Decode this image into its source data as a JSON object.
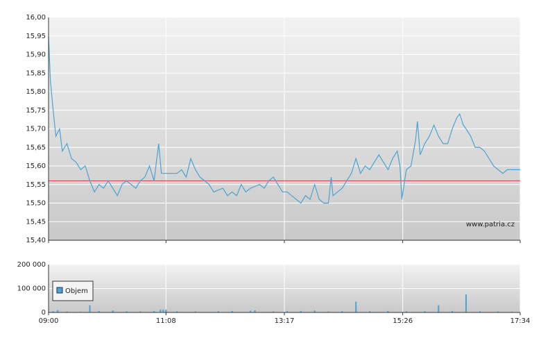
{
  "chart_data": [
    {
      "type": "line",
      "x": [
        "09:00",
        "09:02",
        "09:05",
        "09:08",
        "09:12",
        "09:15",
        "09:20",
        "09:25",
        "09:30",
        "09:35",
        "09:40",
        "09:45",
        "09:50",
        "09:55",
        "10:00",
        "10:05",
        "10:10",
        "10:15",
        "10:20",
        "10:25",
        "10:30",
        "10:35",
        "10:40",
        "10:45",
        "10:50",
        "10:55",
        "11:00",
        "11:03",
        "11:10",
        "11:20",
        "11:25",
        "11:30",
        "11:35",
        "11:40",
        "11:45",
        "11:50",
        "11:55",
        "12:00",
        "12:10",
        "12:15",
        "12:20",
        "12:25",
        "12:30",
        "12:35",
        "12:40",
        "12:50",
        "12:55",
        "13:00",
        "13:05",
        "13:10",
        "13:15",
        "13:20",
        "13:25",
        "13:30",
        "13:35",
        "13:40",
        "13:45",
        "13:50",
        "13:55",
        "14:00",
        "14:05",
        "14:08",
        "14:10",
        "14:15",
        "14:20",
        "14:25",
        "14:30",
        "14:35",
        "14:40",
        "14:45",
        "14:50",
        "14:55",
        "15:00",
        "15:05",
        "15:10",
        "15:15",
        "15:20",
        "15:23",
        "15:25",
        "15:28",
        "15:30",
        "15:35",
        "15:40",
        "15:42",
        "15:45",
        "15:50",
        "15:55",
        "16:00",
        "16:05",
        "16:10",
        "16:15",
        "16:20",
        "16:25",
        "16:28",
        "16:32",
        "16:35",
        "16:40",
        "16:45",
        "16:50",
        "16:55",
        "17:00",
        "17:05",
        "17:10",
        "17:15",
        "17:20",
        "17:34"
      ],
      "series": [
        {
          "color": "#4aa3d2",
          "values": [
            15.95,
            15.83,
            15.75,
            15.68,
            15.7,
            15.64,
            15.66,
            15.62,
            15.61,
            15.59,
            15.6,
            15.56,
            15.53,
            15.55,
            15.54,
            15.56,
            15.54,
            15.52,
            15.55,
            15.56,
            15.55,
            15.54,
            15.56,
            15.57,
            15.6,
            15.56,
            15.66,
            15.58,
            15.58,
            15.58,
            15.59,
            15.57,
            15.62,
            15.59,
            15.57,
            15.56,
            15.55,
            15.53,
            15.54,
            15.52,
            15.53,
            15.52,
            15.55,
            15.53,
            15.54,
            15.55,
            15.54,
            15.56,
            15.57,
            15.55,
            15.53,
            15.53,
            15.52,
            15.51,
            15.5,
            15.52,
            15.51,
            15.55,
            15.51,
            15.5,
            15.5,
            15.57,
            15.52,
            15.53,
            15.54,
            15.56,
            15.58,
            15.62,
            15.58,
            15.6,
            15.59,
            15.61,
            15.63,
            15.61,
            15.59,
            15.62,
            15.64,
            15.6,
            15.51,
            15.56,
            15.59,
            15.6,
            15.67,
            15.72,
            15.63,
            15.66,
            15.68,
            15.71,
            15.68,
            15.66,
            15.66,
            15.7,
            15.73,
            15.74,
            15.71,
            15.7,
            15.68,
            15.65,
            15.65,
            15.64,
            15.62,
            15.6,
            15.59,
            15.58,
            15.59,
            15.59
          ]
        }
      ],
      "reference_line": {
        "value": 15.56,
        "color": "#e03a3a"
      },
      "ylim": [
        15.4,
        16.0
      ],
      "yticks": [
        {
          "value": 15.4,
          "label": "15,40"
        },
        {
          "value": 15.45,
          "label": "15,45"
        },
        {
          "value": 15.5,
          "label": "15,50"
        },
        {
          "value": 15.55,
          "label": "15,55"
        },
        {
          "value": 15.6,
          "label": "15,60"
        },
        {
          "value": 15.65,
          "label": "15,65"
        },
        {
          "value": 15.7,
          "label": "15,70"
        },
        {
          "value": 15.75,
          "label": "15,75"
        },
        {
          "value": 15.8,
          "label": "15,80"
        },
        {
          "value": 15.85,
          "label": "15,85"
        },
        {
          "value": 15.9,
          "label": "15,90"
        },
        {
          "value": 15.95,
          "label": "15,95"
        },
        {
          "value": 16.0,
          "label": "16,00"
        }
      ],
      "annotation": "www.patria.cz",
      "grid": true
    },
    {
      "type": "bar",
      "x": [
        "09:05",
        "09:10",
        "09:20",
        "09:35",
        "09:45",
        "09:55",
        "10:10",
        "10:25",
        "10:40",
        "10:55",
        "11:02",
        "11:05",
        "11:08",
        "11:20",
        "11:40",
        "12:05",
        "12:20",
        "12:40",
        "12:45",
        "13:05",
        "13:20",
        "13:35",
        "13:50",
        "14:05",
        "14:20",
        "14:35",
        "14:50",
        "15:10",
        "15:30",
        "15:50",
        "16:05",
        "16:20",
        "16:35",
        "16:50",
        "17:10",
        "17:25"
      ],
      "series": [
        {
          "name": "Objem",
          "color": "#4aa3d2",
          "values": [
            5000,
            10000,
            4000,
            3000,
            30000,
            6000,
            8000,
            5000,
            4000,
            6000,
            12000,
            12000,
            12000,
            5000,
            4000,
            5000,
            6000,
            7000,
            9000,
            4000,
            5000,
            6000,
            8000,
            4000,
            5000,
            45000,
            5000,
            6000,
            5000,
            5000,
            30000,
            6000,
            75000,
            5000,
            4000,
            3000
          ]
        }
      ],
      "ylim": [
        0,
        200000
      ],
      "yticks": [
        0,
        {
          "value": 100000,
          "label": "100 000"
        },
        {
          "value": 200000,
          "label": "200 000"
        }
      ],
      "xlim": [
        "09:00",
        "17:34"
      ],
      "xticks": [
        "09:00",
        "11:08",
        "13:17",
        "15:26",
        "17:34"
      ],
      "grid": true
    }
  ]
}
